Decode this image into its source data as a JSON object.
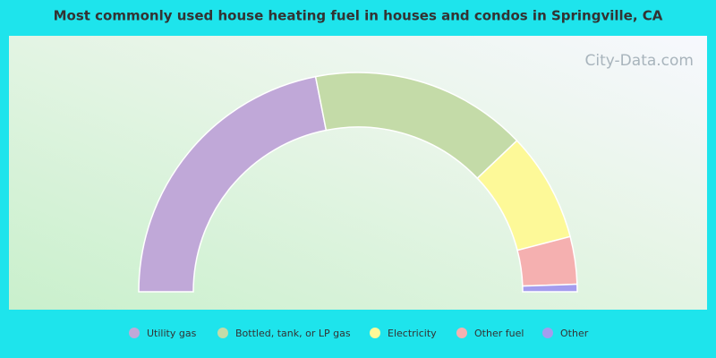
{
  "chart_data": {
    "type": "semi-donut",
    "title": "Most commonly used house heating fuel in houses and condos in Springville, CA",
    "watermark": "City-Data.com",
    "categories": [
      "Utility gas",
      "Bottled, tank, or LP gas",
      "Electricity",
      "Other fuel",
      "Other"
    ],
    "values": [
      43.8,
      32.0,
      16.1,
      7.0,
      1.1
    ],
    "colors": [
      "#c0a8d8",
      "#c4dba8",
      "#fdf998",
      "#f5b0b0",
      "#a49cee"
    ]
  }
}
